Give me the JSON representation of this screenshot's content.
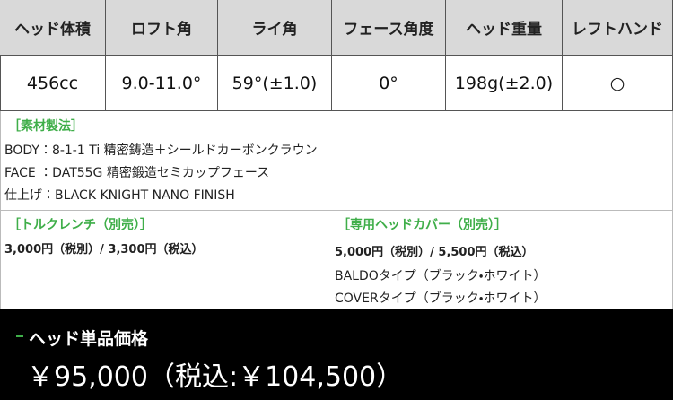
{
  "table": {
    "header": [
      "ヘッド体積",
      "ロフト角",
      "ライ角",
      "フェース角度",
      "ヘッド重量",
      "レフトハンド"
    ],
    "rows": [
      [
        "456cc",
        "9.0-11.0°",
        "59°(±1.0)",
        "0°",
        "198g(±2.0)",
        "○"
      ]
    ]
  },
  "materials": {
    "title": "［素材製法］",
    "lines": [
      "BODY：8-1-1 Ti 精密鋳造＋シールドカーボンクラウン",
      "FACE ：DAT55G 精密鍛造セミカップフェース",
      "仕上げ：BLACK KNIGHT NANO FINISH"
    ]
  },
  "torque_wrench": {
    "title": "［トルクレンチ（別売）］",
    "price": "3,000円（税別）/ 3,300円（税込）"
  },
  "head_cover": {
    "title": "［専用ヘッドカバー（別売）］",
    "price": "5,000円（税別）/ 5,500円（税込）",
    "types": [
      "BALDOタイプ（ブラック・ホワイト）",
      "COVERタイプ（ブラック・ホワイト）"
    ]
  },
  "footer": {
    "label": "ヘッド単品価格",
    "price": "￥95,000（税込:￥104,500）"
  }
}
